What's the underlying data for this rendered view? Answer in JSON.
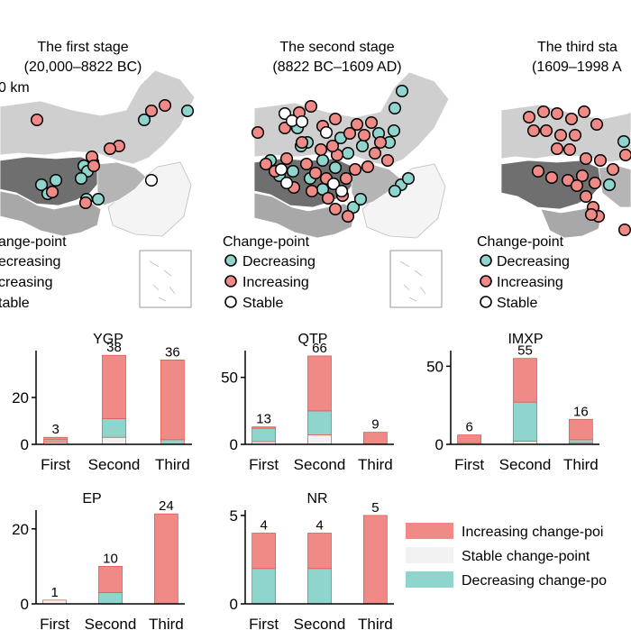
{
  "colors": {
    "increasing": "#F08A86",
    "stable": "#F2F2F2",
    "decreasing": "#8FD5CD",
    "region_dark": "#6E6E6E",
    "region_mid": "#A6A6A6",
    "region_light": "#CFCFCF",
    "region_pale": "#EDEDED"
  },
  "maps": [
    {
      "title": "The first stage",
      "subtitle": "(20,000–8822 BC)",
      "scale": "0 km",
      "legend_title": "ange-point",
      "legend": [
        "ecreasing",
        "creasing",
        "table"
      ],
      "points": {
        "decreasing": [
          [
            160,
            133
          ],
          [
            208,
            123
          ],
          [
            46,
            205
          ],
          [
            62,
            200
          ],
          [
            58,
            213
          ],
          [
            103,
            180
          ],
          [
            93,
            184
          ],
          [
            97,
            190
          ],
          [
            90,
            198
          ],
          [
            96,
            221
          ],
          [
            109,
            221
          ],
          [
            53,
            215
          ]
        ],
        "increasing": [
          [
            41,
            133
          ],
          [
            168,
            123
          ],
          [
            183,
            117
          ],
          [
            132,
            162
          ],
          [
            122,
            165
          ],
          [
            102,
            174
          ],
          [
            95,
            225
          ],
          [
            58,
            213
          ],
          [
            104,
            184
          ]
        ],
        "stable": [
          [
            168,
            200
          ]
        ]
      }
    },
    {
      "title": "The second stage",
      "subtitle": "(8822 BC–1609 AD)",
      "legend_title": "Change-point",
      "legend": [
        "Decreasing",
        "Increasing",
        "Stable"
      ],
      "points": {
        "decreasing": [
          [
            446,
            101
          ],
          [
            438,
            120
          ],
          [
            330,
            142
          ],
          [
            341,
            158
          ],
          [
            378,
            153
          ],
          [
            420,
            148
          ],
          [
            437,
            145
          ],
          [
            432,
            158
          ],
          [
            300,
            178
          ],
          [
            310,
            195
          ],
          [
            325,
            190
          ],
          [
            358,
            178
          ],
          [
            372,
            186
          ],
          [
            386,
            170
          ],
          [
            402,
            162
          ],
          [
            445,
            205
          ],
          [
            453,
            198
          ],
          [
            438,
            212
          ],
          [
            358,
            210
          ],
          [
            344,
            198
          ],
          [
            392,
            230
          ],
          [
            400,
            221
          ],
          [
            334,
            162
          ]
        ],
        "increasing": [
          [
            332,
            125
          ],
          [
            345,
            118
          ],
          [
            358,
            140
          ],
          [
            372,
            132
          ],
          [
            388,
            148
          ],
          [
            396,
            138
          ],
          [
            404,
            150
          ],
          [
            412,
            136
          ],
          [
            422,
            158
          ],
          [
            286,
            147
          ],
          [
            295,
            182
          ],
          [
            305,
            190
          ],
          [
            318,
            176
          ],
          [
            326,
            208
          ],
          [
            340,
            182
          ],
          [
            350,
            192
          ],
          [
            362,
            198
          ],
          [
            374,
            172
          ],
          [
            384,
            198
          ],
          [
            394,
            188
          ],
          [
            408,
            185
          ],
          [
            430,
            178
          ],
          [
            346,
            212
          ],
          [
            364,
            220
          ],
          [
            372,
            232
          ],
          [
            386,
            240
          ],
          [
            380,
            217
          ],
          [
            335,
            158
          ],
          [
            316,
            142
          ],
          [
            356,
            166
          ],
          [
            369,
            162
          ],
          [
            416,
            170
          ]
        ],
        "stable": [
          [
            316,
            126
          ],
          [
            324,
            134
          ],
          [
            335,
            135
          ],
          [
            362,
            147
          ],
          [
            370,
            204
          ],
          [
            318,
            203
          ],
          [
            312,
            188
          ],
          [
            379,
            212
          ]
        ]
      }
    },
    {
      "title": "The third sta",
      "subtitle": "(1609–1998 A",
      "legend_title": "Change-point",
      "legend": [
        "Decreasing",
        "Increasing",
        "Stable"
      ],
      "points": {
        "decreasing": [
          [
            692,
            157
          ],
          [
            676,
            205
          ]
        ],
        "increasing": [
          [
            587,
            130
          ],
          [
            603,
            124
          ],
          [
            618,
            126
          ],
          [
            634,
            132
          ],
          [
            648,
            124
          ],
          [
            662,
            138
          ],
          [
            592,
            145
          ],
          [
            606,
            145
          ],
          [
            622,
            150
          ],
          [
            638,
            150
          ],
          [
            618,
            165
          ],
          [
            632,
            166
          ],
          [
            650,
            176
          ],
          [
            666,
            178
          ],
          [
            680,
            188
          ],
          [
            694,
            172
          ],
          [
            597,
            190
          ],
          [
            612,
            197
          ],
          [
            630,
            200
          ],
          [
            646,
            195
          ],
          [
            660,
            203
          ],
          [
            650,
            218
          ],
          [
            658,
            230
          ],
          [
            664,
            240
          ],
          [
            656,
            238
          ],
          [
            640,
            206
          ],
          [
            693,
            255
          ]
        ],
        "stable": []
      }
    }
  ],
  "legend": {
    "items": [
      "Increasing change-poi",
      "Stable change-point",
      "Decreasing change-po"
    ]
  },
  "chart_data": [
    {
      "type": "bar",
      "stacked": true,
      "title": "YGP",
      "categories": [
        "First",
        "Second",
        "Third"
      ],
      "totals": [
        3,
        38,
        36
      ],
      "yticks": [
        0,
        20
      ],
      "ylim": [
        0,
        40
      ],
      "series": [
        {
          "name": "Stable change-point",
          "values": [
            1,
            3,
            0
          ]
        },
        {
          "name": "Decreasing change-point",
          "values": [
            1,
            8,
            2
          ]
        },
        {
          "name": "Increasing change-point",
          "values": [
            1,
            27,
            34
          ]
        }
      ]
    },
    {
      "type": "bar",
      "stacked": true,
      "title": "QTP",
      "categories": [
        "First",
        "Second",
        "Third"
      ],
      "totals": [
        13,
        66,
        9
      ],
      "yticks": [
        0,
        50
      ],
      "ylim": [
        0,
        70
      ],
      "series": [
        {
          "name": "Stable change-point",
          "values": [
            2,
            7,
            0
          ]
        },
        {
          "name": "Decreasing change-point",
          "values": [
            10,
            18,
            0
          ]
        },
        {
          "name": "Increasing change-point",
          "values": [
            1,
            41,
            9
          ]
        }
      ]
    },
    {
      "type": "bar",
      "stacked": true,
      "title": "IMXP",
      "categories": [
        "First",
        "Second",
        "Third"
      ],
      "totals": [
        6,
        55,
        16
      ],
      "yticks": [
        0,
        50
      ],
      "ylim": [
        0,
        60
      ],
      "series": [
        {
          "name": "Stable change-point",
          "values": [
            1,
            2,
            1
          ]
        },
        {
          "name": "Decreasing change-point",
          "values": [
            0,
            25,
            2
          ]
        },
        {
          "name": "Increasing change-point",
          "values": [
            5,
            28,
            13
          ]
        }
      ]
    },
    {
      "type": "bar",
      "stacked": true,
      "title": "EP",
      "categories": [
        "First",
        "Second",
        "Third"
      ],
      "totals": [
        1,
        10,
        24
      ],
      "yticks": [
        0,
        20
      ],
      "ylim": [
        0,
        25
      ],
      "series": [
        {
          "name": "Stable change-point",
          "values": [
            1,
            0,
            0
          ]
        },
        {
          "name": "Decreasing change-point",
          "values": [
            0,
            3,
            0
          ]
        },
        {
          "name": "Increasing change-point",
          "values": [
            0,
            7,
            24
          ]
        }
      ]
    },
    {
      "type": "bar",
      "stacked": true,
      "title": "NR",
      "categories": [
        "First",
        "Second",
        "Third"
      ],
      "totals": [
        4,
        4,
        5
      ],
      "yticks": [
        0,
        5
      ],
      "ylim": [
        0,
        5.3
      ],
      "series": [
        {
          "name": "Stable change-point",
          "values": [
            0,
            0,
            0
          ]
        },
        {
          "name": "Decreasing change-point",
          "values": [
            2,
            2,
            0
          ]
        },
        {
          "name": "Increasing change-point",
          "values": [
            2,
            2,
            5
          ]
        }
      ]
    }
  ]
}
